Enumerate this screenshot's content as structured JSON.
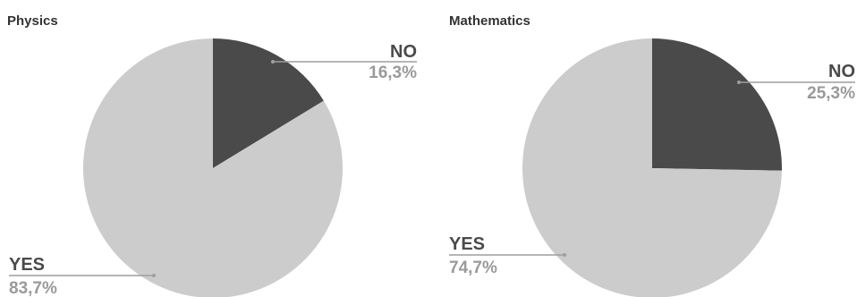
{
  "chart_data": [
    {
      "type": "pie",
      "title": "Physics",
      "slices": [
        {
          "label": "NO",
          "value": 16.3,
          "value_text": "16,3%",
          "color": "#4a4a4a"
        },
        {
          "label": "YES",
          "value": 83.7,
          "value_text": "83,7%",
          "color": "#cccccc"
        }
      ],
      "label_color": "#4a4a4a",
      "legend": "none"
    },
    {
      "type": "pie",
      "title": "Mathematics",
      "slices": [
        {
          "label": "NO",
          "value": 25.3,
          "value_text": "25,3%",
          "color": "#4a4a4a"
        },
        {
          "label": "YES",
          "value": 74.7,
          "value_text": "74,7%",
          "color": "#cccccc"
        }
      ],
      "label_color": "#4a4a4a",
      "legend": "none"
    }
  ]
}
